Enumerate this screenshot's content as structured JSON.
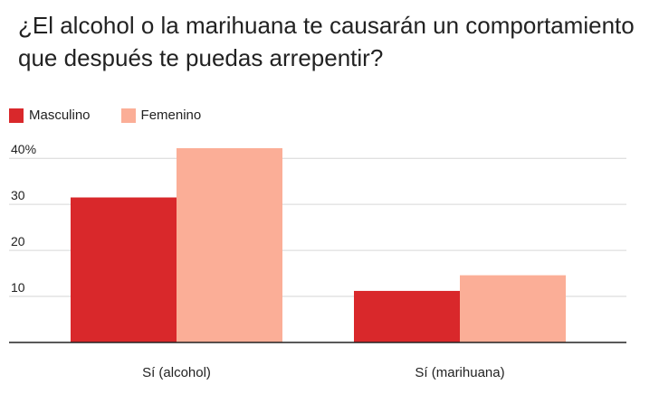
{
  "title": "¿El alcohol o la marihuana te causarán un comportamiento que después te puedas arrepentir?",
  "chart_data": {
    "type": "bar",
    "title": "¿El alcohol o la marihuana te causarán un comportamiento que después te puedas arrepentir?",
    "categories": [
      "Sí (alcohol)",
      "Sí (marihuana)"
    ],
    "series": [
      {
        "name": "Masculino",
        "values": [
          31.5,
          11.2
        ],
        "color": "#d9282b"
      },
      {
        "name": "Femenino",
        "values": [
          42.2,
          14.6
        ],
        "color": "#fbae97"
      }
    ],
    "yticks": [
      {
        "value": 10,
        "label": "10"
      },
      {
        "value": 20,
        "label": "20"
      },
      {
        "value": 30,
        "label": "30"
      },
      {
        "value": 40,
        "label": "40%"
      }
    ],
    "ylim": [
      0,
      42.2
    ],
    "xlabel": "",
    "ylabel": "",
    "grid": true,
    "legend_position": "top-left"
  }
}
